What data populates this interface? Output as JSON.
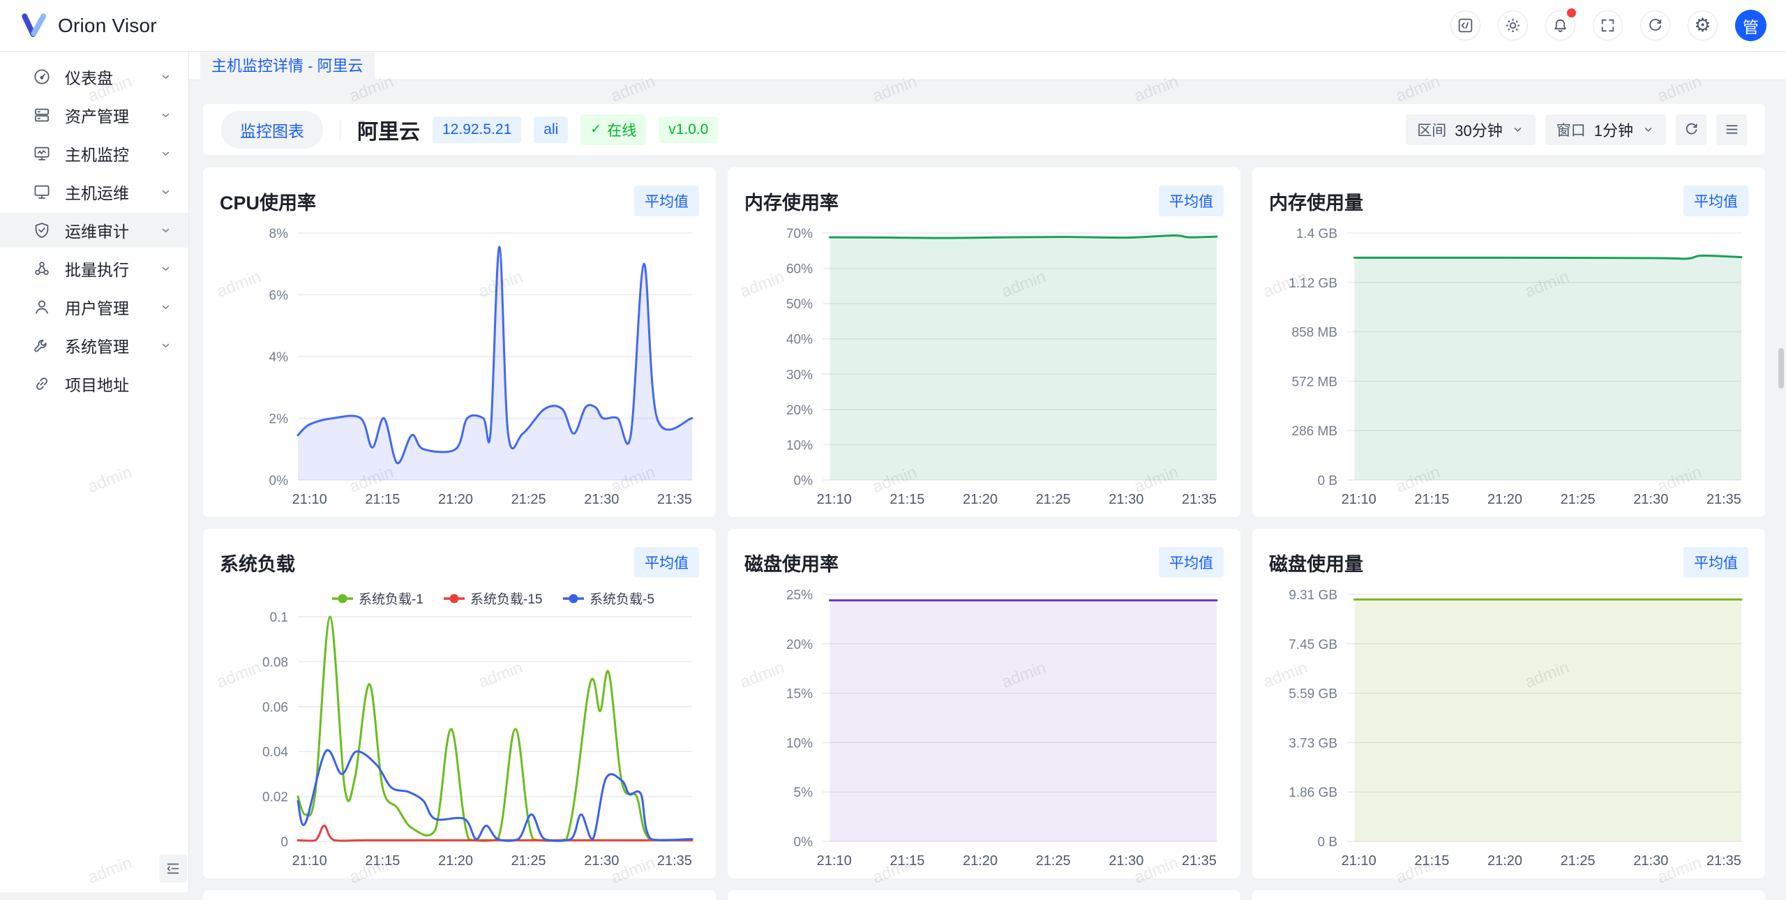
{
  "topbar": {
    "brand": "Orion Visor",
    "avatar_text": "管",
    "actions": [
      {
        "id": "code",
        "icon": "code-icon"
      },
      {
        "id": "theme",
        "icon": "theme-sun-icon"
      },
      {
        "id": "notifications",
        "icon": "bell-icon",
        "badge_dot": true
      },
      {
        "id": "fullscreen",
        "icon": "fullscreen-icon"
      },
      {
        "id": "reload",
        "icon": "reload-icon"
      },
      {
        "id": "settings",
        "icon": "gear-icon"
      }
    ]
  },
  "tabbar": {
    "active_tab": "主机监控详情 - 阿里云"
  },
  "sidebar": {
    "items": [
      {
        "id": "dashboard",
        "label": "仪表盘",
        "chevron": true,
        "active": false
      },
      {
        "id": "assets",
        "label": "资产管理",
        "chevron": true,
        "active": false
      },
      {
        "id": "host-monitor",
        "label": "主机监控",
        "chevron": true,
        "active": false
      },
      {
        "id": "host-ops",
        "label": "主机运维",
        "chevron": true,
        "active": false
      },
      {
        "id": "ops-audit",
        "label": "运维审计",
        "chevron": true,
        "active": true
      },
      {
        "id": "batch-exec",
        "label": "批量执行",
        "chevron": true,
        "active": false
      },
      {
        "id": "user-mgmt",
        "label": "用户管理",
        "chevron": true,
        "active": false
      },
      {
        "id": "system-mgmt",
        "label": "系统管理",
        "chevron": true,
        "active": false
      },
      {
        "id": "project-link",
        "label": "项目地址",
        "chevron": false,
        "active": false
      }
    ]
  },
  "header": {
    "view_tab": "监控图表",
    "host_name": "阿里云",
    "ip_badge": "12.92.5.21",
    "tag_badge": "ali",
    "status_check": "✓",
    "status_badge": "在线",
    "version_badge": "v1.0.0",
    "range_label": "区间",
    "range_value": "30分钟",
    "window_label": "窗口",
    "window_value": "1分钟"
  },
  "watermark": "admin",
  "colors": {
    "primary": "#165dff",
    "badge_blue_bg": "#e8f3ff",
    "badge_green_bg": "#e8ffea",
    "green": "#00b42a",
    "danger": "#f53f3f",
    "page_bg": "#f2f3f5"
  },
  "charts": [
    {
      "title": "CPU使用率",
      "badge": "平均值",
      "chart_data": {
        "type": "line",
        "title": "CPU使用率",
        "xlabel": "",
        "ylabel": "",
        "x_unit": "minutes after 21:00",
        "xlim": [
          9.2,
          36.2
        ],
        "xticks": [
          "21:10",
          "21:15",
          "21:20",
          "21:25",
          "21:30",
          "21:35"
        ],
        "xtick_values": [
          10,
          15,
          20,
          25,
          30,
          35
        ],
        "ymax": 8,
        "yticks": [
          "8%",
          "6%",
          "4%",
          "2%",
          "0%"
        ],
        "ytick_values": [
          8,
          6,
          4,
          2,
          0
        ],
        "grid": true,
        "legend": false,
        "series": [
          {
            "name": "CPU使用率",
            "color": "#4468f2",
            "fill": "rgba(68,104,242,0.13)",
            "points": [
              [
                9.2,
                1.45
              ],
              [
                10,
                1.8
              ],
              [
                11.6,
                2
              ],
              [
                13.5,
                2
              ],
              [
                14.3,
                1.05
              ],
              [
                15.1,
                2
              ],
              [
                16,
                0.55
              ],
              [
                17,
                1.45
              ],
              [
                17.8,
                1
              ],
              [
                20,
                1
              ],
              [
                20.8,
                2
              ],
              [
                21.9,
                2
              ],
              [
                22.4,
                1.55
              ],
              [
                23,
                7.55
              ],
              [
                23.6,
                1.5
              ],
              [
                24.6,
                1.5
              ],
              [
                26.1,
                2.3
              ],
              [
                27.3,
                2.3
              ],
              [
                28.1,
                1.5
              ],
              [
                28.9,
                2.35
              ],
              [
                29.6,
                2.35
              ],
              [
                30.1,
                2
              ],
              [
                31.1,
                2
              ],
              [
                32,
                1.45
              ],
              [
                32.9,
                7.0
              ],
              [
                33.8,
                2
              ],
              [
                36.2,
                2
              ]
            ]
          }
        ]
      }
    },
    {
      "title": "内存使用率",
      "badge": "平均值",
      "chart_data": {
        "type": "line",
        "title": "内存使用率",
        "xlabel": "",
        "ylabel": "",
        "x_unit": "minutes after 21:00",
        "xlim": [
          9.2,
          36.2
        ],
        "xticks": [
          "21:10",
          "21:15",
          "21:20",
          "21:25",
          "21:30",
          "21:35"
        ],
        "xtick_values": [
          10,
          15,
          20,
          25,
          30,
          35
        ],
        "ymax": 70,
        "yticks": [
          "70%",
          "60%",
          "50%",
          "40%",
          "30%",
          "20%",
          "10%",
          "0%"
        ],
        "ytick_values": [
          70,
          60,
          50,
          40,
          30,
          20,
          10,
          0
        ],
        "grid": true,
        "legend": false,
        "series": [
          {
            "name": "内存使用率",
            "color": "#18a058",
            "fill": "rgba(24,160,88,0.12)",
            "points": [
              [
                9.7,
                68.8
              ],
              [
                14,
                68.7
              ],
              [
                18,
                68.6
              ],
              [
                22,
                68.8
              ],
              [
                26,
                68.9
              ],
              [
                30,
                68.7
              ],
              [
                33.3,
                69.3
              ],
              [
                34.3,
                68.8
              ],
              [
                36.2,
                69.0
              ]
            ]
          }
        ]
      }
    },
    {
      "title": "内存使用量",
      "badge": "平均值",
      "chart_data": {
        "type": "line",
        "title": "内存使用量",
        "xlabel": "",
        "ylabel": "",
        "y_unit": "GB",
        "x_unit": "minutes after 21:00",
        "xlim": [
          9.2,
          36.2
        ],
        "xticks": [
          "21:10",
          "21:15",
          "21:20",
          "21:25",
          "21:30",
          "21:35"
        ],
        "xtick_values": [
          10,
          15,
          20,
          25,
          30,
          35
        ],
        "ymax": 1.4,
        "yticks": [
          "1.4 GB",
          "1.12 GB",
          "858 MB",
          "572 MB",
          "286 MB",
          "0 B"
        ],
        "ytick_values": [
          1.4,
          1.12,
          0.84,
          0.56,
          0.28,
          0
        ],
        "grid": true,
        "legend": false,
        "series": [
          {
            "name": "内存使用量",
            "color": "#18a058",
            "fill": "rgba(24,160,88,0.12)",
            "points": [
              [
                9.7,
                1.26
              ],
              [
                20,
                1.26
              ],
              [
                30,
                1.258
              ],
              [
                32.5,
                1.255
              ],
              [
                33.5,
                1.272
              ],
              [
                36.2,
                1.263
              ]
            ]
          }
        ]
      }
    },
    {
      "title": "系统负载",
      "badge": "平均值",
      "chart_data": {
        "type": "line",
        "title": "系统负载",
        "xlabel": "",
        "ylabel": "",
        "x_unit": "minutes after 21:00",
        "xlim": [
          9.2,
          36.2
        ],
        "xticks": [
          "21:10",
          "21:15",
          "21:20",
          "21:25",
          "21:30",
          "21:35"
        ],
        "xtick_values": [
          10,
          15,
          20,
          25,
          30,
          35
        ],
        "ymax": 0.1,
        "yticks": [
          "0.1",
          "0.08",
          "0.06",
          "0.04",
          "0.02",
          "0"
        ],
        "ytick_values": [
          0.1,
          0.08,
          0.06,
          0.04,
          0.02,
          0
        ],
        "grid": true,
        "legend": true,
        "legend_position": "top-center",
        "series": [
          {
            "name": "系统负载-1",
            "color": "#6abd1e",
            "points": [
              [
                9.2,
                0.02
              ],
              [
                9.7,
                0.012
              ],
              [
                10.4,
                0.022
              ],
              [
                11.4,
                0.1
              ],
              [
                12.4,
                0.024
              ],
              [
                13.1,
                0.028
              ],
              [
                14.1,
                0.07
              ],
              [
                15,
                0.024
              ],
              [
                16,
                0.015
              ],
              [
                17,
                0.006
              ],
              [
                18.6,
                0.005
              ],
              [
                19.7,
                0.05
              ],
              [
                20.9,
                0.001
              ],
              [
                22.9,
                0.001
              ],
              [
                24.1,
                0.05
              ],
              [
                25.3,
                0.001
              ],
              [
                27.6,
                0.001
              ],
              [
                29.2,
                0.07
              ],
              [
                29.9,
                0.058
              ],
              [
                30.5,
                0.075
              ],
              [
                31.4,
                0.026
              ],
              [
                32.4,
                0.02
              ],
              [
                33.3,
                0.001
              ],
              [
                36.2,
                0.001
              ]
            ]
          },
          {
            "name": "系统负载-15",
            "color": "#e8403d",
            "points": [
              [
                9.2,
                0.0005
              ],
              [
                10.4,
                0.0005
              ],
              [
                11,
                0.007
              ],
              [
                11.7,
                0.0005
              ],
              [
                14,
                0.0005
              ],
              [
                20,
                0.0005
              ],
              [
                28,
                0.0005
              ],
              [
                36.2,
                0.0005
              ]
            ]
          },
          {
            "name": "系统负载-5",
            "color": "#3a62e8",
            "points": [
              [
                9.2,
                0.018
              ],
              [
                9.7,
                0.008
              ],
              [
                11.1,
                0.04
              ],
              [
                12.2,
                0.03
              ],
              [
                13.2,
                0.04
              ],
              [
                14.6,
                0.034
              ],
              [
                15.6,
                0.024
              ],
              [
                16.8,
                0.022
              ],
              [
                17.8,
                0.018
              ],
              [
                18.6,
                0.01
              ],
              [
                20.6,
                0.01
              ],
              [
                21.4,
                0.001
              ],
              [
                22.1,
                0.007
              ],
              [
                22.9,
                0.001
              ],
              [
                24.3,
                0.001
              ],
              [
                25.2,
                0.012
              ],
              [
                26.1,
                0.001
              ],
              [
                27.9,
                0.001
              ],
              [
                28.6,
                0.012
              ],
              [
                29.4,
                0.001
              ],
              [
                30.3,
                0.028
              ],
              [
                31.4,
                0.027
              ],
              [
                31.9,
                0.021
              ],
              [
                32.7,
                0.021
              ],
              [
                33.4,
                0.001
              ],
              [
                36.2,
                0.001
              ]
            ]
          }
        ]
      }
    },
    {
      "title": "磁盘使用率",
      "badge": "平均值",
      "chart_data": {
        "type": "line",
        "title": "磁盘使用率",
        "xlabel": "",
        "ylabel": "",
        "x_unit": "minutes after 21:00",
        "xlim": [
          9.2,
          36.2
        ],
        "xticks": [
          "21:10",
          "21:15",
          "21:20",
          "21:25",
          "21:30",
          "21:35"
        ],
        "xtick_values": [
          10,
          15,
          20,
          25,
          30,
          35
        ],
        "ymax": 25,
        "yticks": [
          "25%",
          "20%",
          "15%",
          "10%",
          "5%",
          "0%"
        ],
        "ytick_values": [
          25,
          20,
          15,
          10,
          5,
          0
        ],
        "grid": true,
        "legend": false,
        "series": [
          {
            "name": "磁盘使用率",
            "color": "#6a3ac8",
            "fill": "rgba(106,58,200,0.10)",
            "points": [
              [
                9.7,
                24.4
              ],
              [
                20,
                24.4
              ],
              [
                30,
                24.4
              ],
              [
                36.2,
                24.4
              ]
            ]
          }
        ]
      }
    },
    {
      "title": "磁盘使用量",
      "badge": "平均值",
      "chart_data": {
        "type": "line",
        "title": "磁盘使用量",
        "xlabel": "",
        "ylabel": "",
        "y_unit": "GB",
        "x_unit": "minutes after 21:00",
        "xlim": [
          9.2,
          36.2
        ],
        "xticks": [
          "21:10",
          "21:15",
          "21:20",
          "21:25",
          "21:30",
          "21:35"
        ],
        "xtick_values": [
          10,
          15,
          20,
          25,
          30,
          35
        ],
        "ymax": 9.31,
        "yticks": [
          "9.31 GB",
          "7.45 GB",
          "5.59 GB",
          "3.73 GB",
          "1.86 GB",
          "0 B"
        ],
        "ytick_values": [
          9.31,
          7.45,
          5.59,
          3.73,
          1.86,
          0
        ],
        "grid": true,
        "legend": false,
        "series": [
          {
            "name": "磁盘使用量",
            "color": "#7db31e",
            "fill": "rgba(125,179,30,0.13)",
            "points": [
              [
                9.7,
                9.12
              ],
              [
                20,
                9.12
              ],
              [
                30,
                9.12
              ],
              [
                36.2,
                9.12
              ]
            ]
          }
        ]
      }
    }
  ]
}
